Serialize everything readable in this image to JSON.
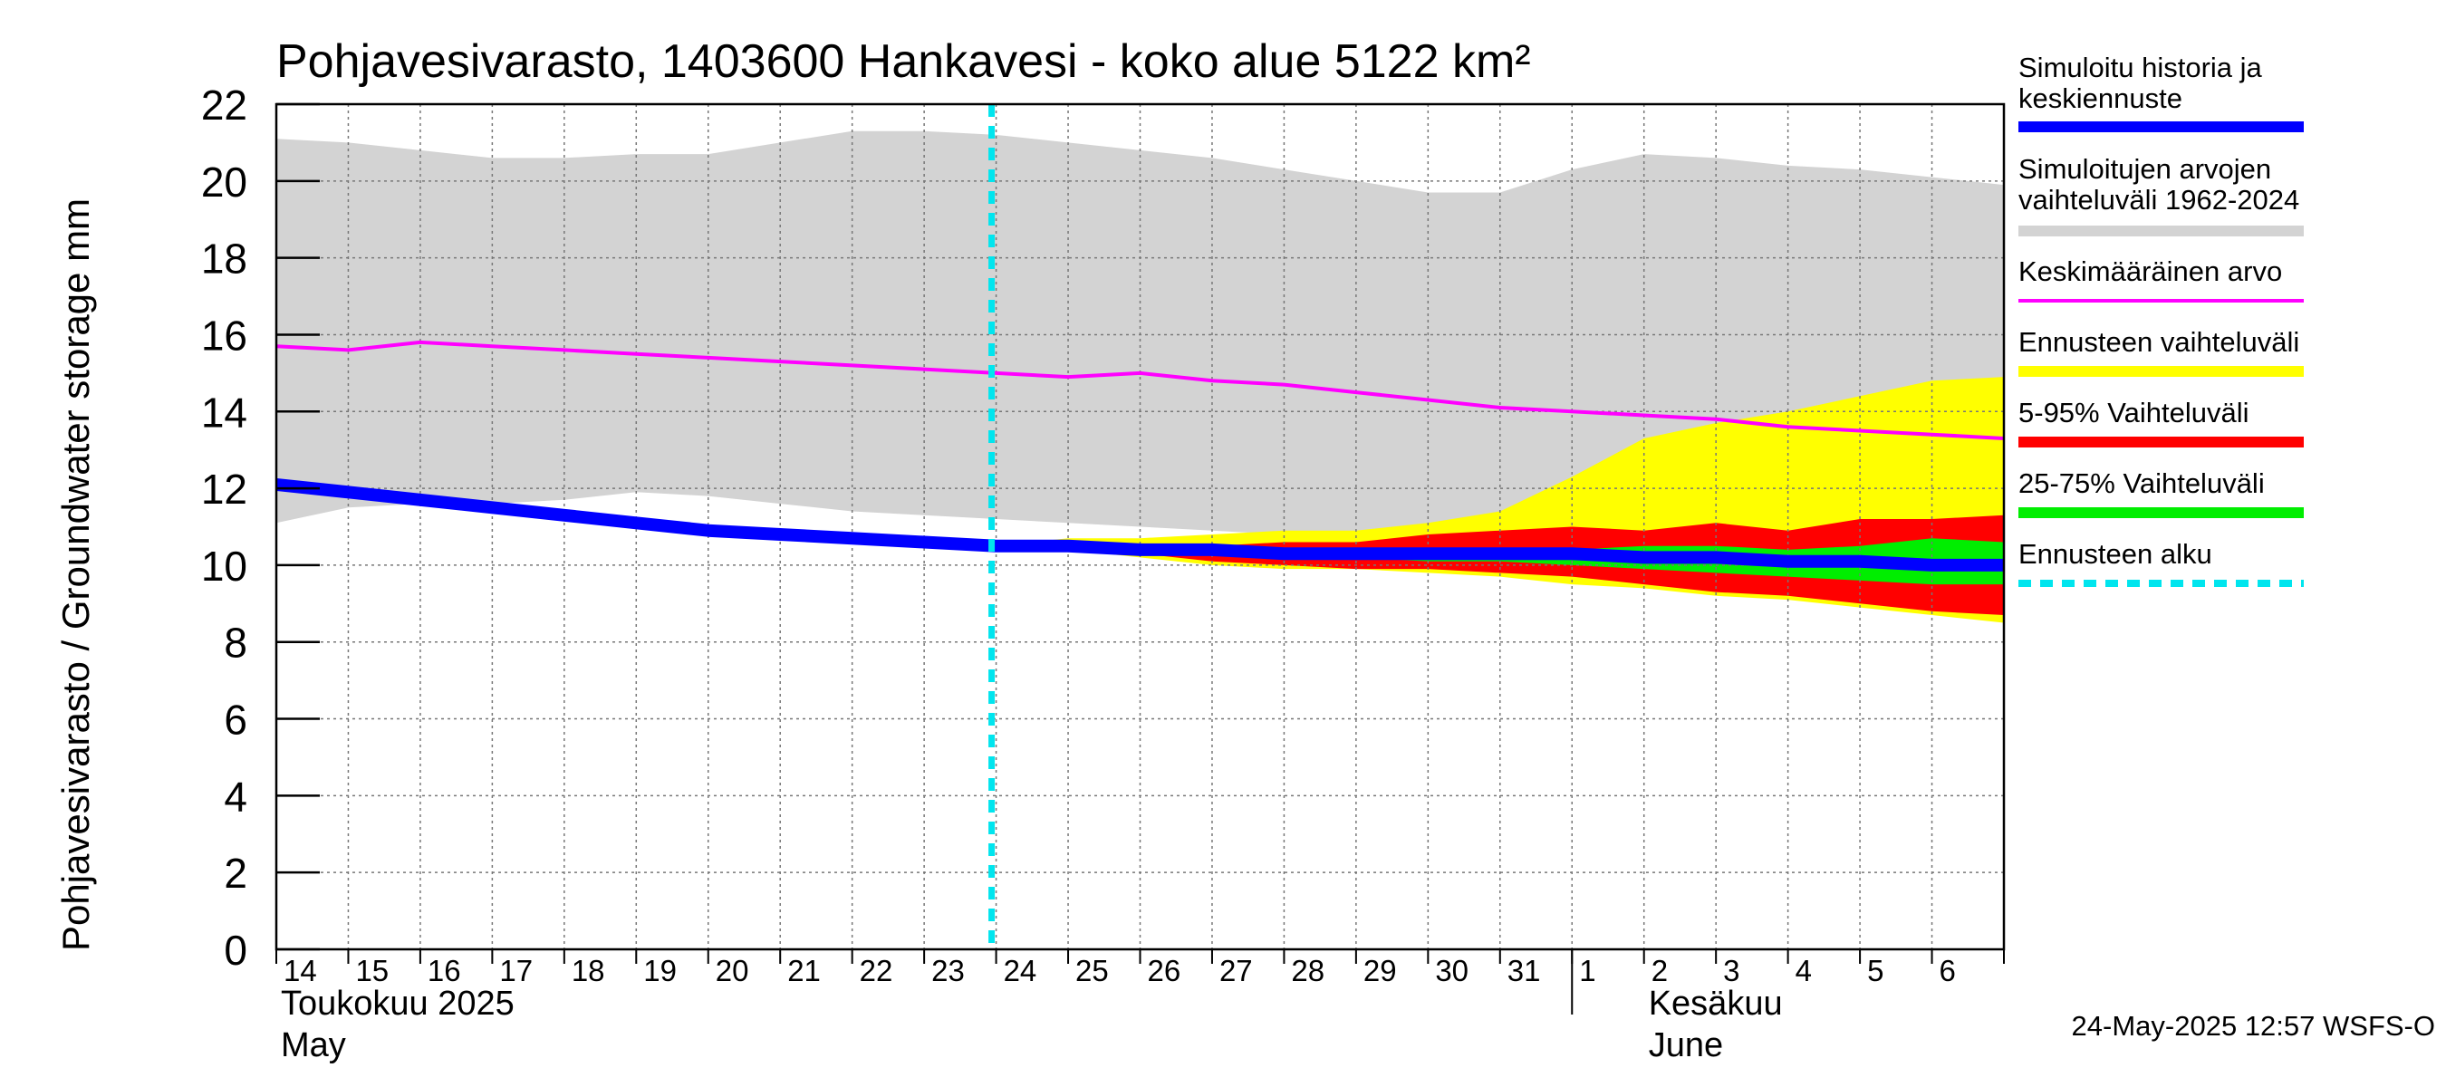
{
  "chart_data": {
    "type": "area",
    "title": "Pohjavesivarasto, 1403600 Hankavesi - koko alue 5122 km²",
    "ylabel": "Pohjavesivarasto / Groundwater storage   mm",
    "ylim": [
      0,
      22
    ],
    "yticks": [
      0,
      2,
      4,
      6,
      8,
      10,
      12,
      14,
      16,
      18,
      20,
      22
    ],
    "xlim": [
      0,
      24
    ],
    "x_day_labels": [
      "14",
      "15",
      "16",
      "17",
      "18",
      "19",
      "20",
      "21",
      "22",
      "23",
      "24",
      "25",
      "26",
      "27",
      "28",
      "29",
      "30",
      "31",
      "1",
      "2",
      "3",
      "4",
      "5",
      "6"
    ],
    "month_labels": [
      {
        "fi": "Toukokuu  2025",
        "en": "May",
        "at_day": 0
      },
      {
        "fi": "Kesäkuu",
        "en": "June",
        "at_day": 19
      }
    ],
    "month_divider_day": 18,
    "forecast_start_day": 10,
    "grid": true,
    "legend_placement": "right",
    "timestamp": "24-May-2025 12:57 WSFS-O",
    "series": [
      {
        "name": "Simuloitujen arvojen vaihteluväli 1962-2024",
        "kind": "band",
        "color": "#d3d3d3",
        "x": [
          0,
          1,
          2,
          3,
          4,
          5,
          6,
          7,
          8,
          9,
          10,
          11,
          12,
          13,
          14,
          15,
          16,
          17,
          18,
          19,
          20,
          21,
          22,
          23,
          24
        ],
        "upper": [
          21.1,
          21.0,
          20.8,
          20.6,
          20.6,
          20.7,
          20.7,
          21.0,
          21.3,
          21.3,
          21.2,
          21.0,
          20.8,
          20.6,
          20.3,
          20.0,
          19.7,
          19.7,
          20.3,
          20.7,
          20.6,
          20.4,
          20.3,
          20.1,
          19.9
        ],
        "lower": [
          11.1,
          11.5,
          11.6,
          11.6,
          11.7,
          11.9,
          11.8,
          11.6,
          11.4,
          11.3,
          11.2,
          11.1,
          11.0,
          10.9,
          10.8,
          10.6,
          10.5,
          10.4,
          10.2,
          10.0,
          9.8,
          9.6,
          9.4,
          9.3,
          9.2
        ]
      },
      {
        "name": "Ennusteen vaihteluväli",
        "kind": "band",
        "color": "#ffff00",
        "x": [
          10,
          11,
          12,
          13,
          14,
          15,
          16,
          17,
          18,
          19,
          20,
          21,
          22,
          23,
          24
        ],
        "upper": [
          10.5,
          10.7,
          10.7,
          10.8,
          10.9,
          10.9,
          11.1,
          11.4,
          12.3,
          13.3,
          13.7,
          14.0,
          14.4,
          14.8,
          14.9
        ],
        "lower": [
          10.5,
          10.4,
          10.2,
          10.0,
          9.9,
          9.9,
          9.8,
          9.7,
          9.5,
          9.4,
          9.2,
          9.1,
          8.9,
          8.7,
          8.5
        ]
      },
      {
        "name": "5-95% Vaihteluväli",
        "kind": "band",
        "color": "#ff0000",
        "x": [
          10,
          11,
          12,
          13,
          14,
          15,
          16,
          17,
          18,
          19,
          20,
          21,
          22,
          23,
          24
        ],
        "upper": [
          10.5,
          10.6,
          10.5,
          10.5,
          10.6,
          10.6,
          10.8,
          10.9,
          11.0,
          10.9,
          11.1,
          10.9,
          11.2,
          11.2,
          11.3
        ],
        "lower": [
          10.5,
          10.5,
          10.3,
          10.1,
          10.0,
          9.9,
          9.9,
          9.8,
          9.7,
          9.5,
          9.3,
          9.2,
          9.0,
          8.8,
          8.7
        ]
      },
      {
        "name": "25-75% Vaihteluväli",
        "kind": "band",
        "color": "#00ee00",
        "x": [
          10,
          11,
          12,
          13,
          14,
          15,
          16,
          17,
          18,
          19,
          20,
          21,
          22,
          23,
          24
        ],
        "upper": [
          10.5,
          10.6,
          10.5,
          10.4,
          10.4,
          10.4,
          10.4,
          10.4,
          10.4,
          10.5,
          10.5,
          10.4,
          10.5,
          10.7,
          10.6
        ],
        "lower": [
          10.5,
          10.5,
          10.4,
          10.3,
          10.2,
          10.2,
          10.1,
          10.1,
          10.0,
          9.9,
          9.8,
          9.7,
          9.6,
          9.5,
          9.5
        ]
      },
      {
        "name": "Keskimääräinen arvo",
        "kind": "line",
        "color": "#ff00ff",
        "x": [
          0,
          1,
          2,
          3,
          4,
          5,
          6,
          7,
          8,
          9,
          10,
          11,
          12,
          13,
          14,
          15,
          16,
          17,
          18,
          19,
          20,
          21,
          22,
          23,
          24
        ],
        "y": [
          15.7,
          15.6,
          15.8,
          15.7,
          15.6,
          15.5,
          15.4,
          15.3,
          15.2,
          15.1,
          15.0,
          14.9,
          15.0,
          14.8,
          14.7,
          14.5,
          14.3,
          14.1,
          14.0,
          13.9,
          13.8,
          13.6,
          13.5,
          13.4,
          13.3
        ]
      },
      {
        "name": "Simuloitu historia ja keskiennuste",
        "kind": "line",
        "color": "#0000ff",
        "x": [
          0,
          1,
          2,
          3,
          4,
          5,
          6,
          7,
          8,
          9,
          10,
          11,
          12,
          13,
          14,
          15,
          16,
          17,
          18,
          19,
          20,
          21,
          22,
          23,
          24
        ],
        "y": [
          12.1,
          11.9,
          11.7,
          11.5,
          11.3,
          11.1,
          10.9,
          10.8,
          10.7,
          10.6,
          10.5,
          10.5,
          10.4,
          10.4,
          10.3,
          10.3,
          10.3,
          10.3,
          10.3,
          10.2,
          10.2,
          10.1,
          10.1,
          10.0,
          10.0
        ]
      }
    ],
    "legend": [
      {
        "label_lines": [
          "Simuloitu historia ja",
          "keskiennuste"
        ],
        "color": "#0000ff",
        "style": "thick"
      },
      {
        "label_lines": [
          "Simuloitujen arvojen",
          "vaihteluväli 1962-2024"
        ],
        "color": "#d3d3d3",
        "style": "thick"
      },
      {
        "label_lines": [
          "Keskimääräinen arvo"
        ],
        "color": "#ff00ff",
        "style": "thin"
      },
      {
        "label_lines": [
          "Ennusteen vaihteluväli"
        ],
        "color": "#ffff00",
        "style": "thick"
      },
      {
        "label_lines": [
          "5-95% Vaihteluväli"
        ],
        "color": "#ff0000",
        "style": "thick"
      },
      {
        "label_lines": [
          "25-75% Vaihteluväli"
        ],
        "color": "#00ee00",
        "style": "thick"
      },
      {
        "label_lines": [
          "Ennusteen alku"
        ],
        "color": "#00e5ee",
        "style": "dashed"
      }
    ]
  }
}
